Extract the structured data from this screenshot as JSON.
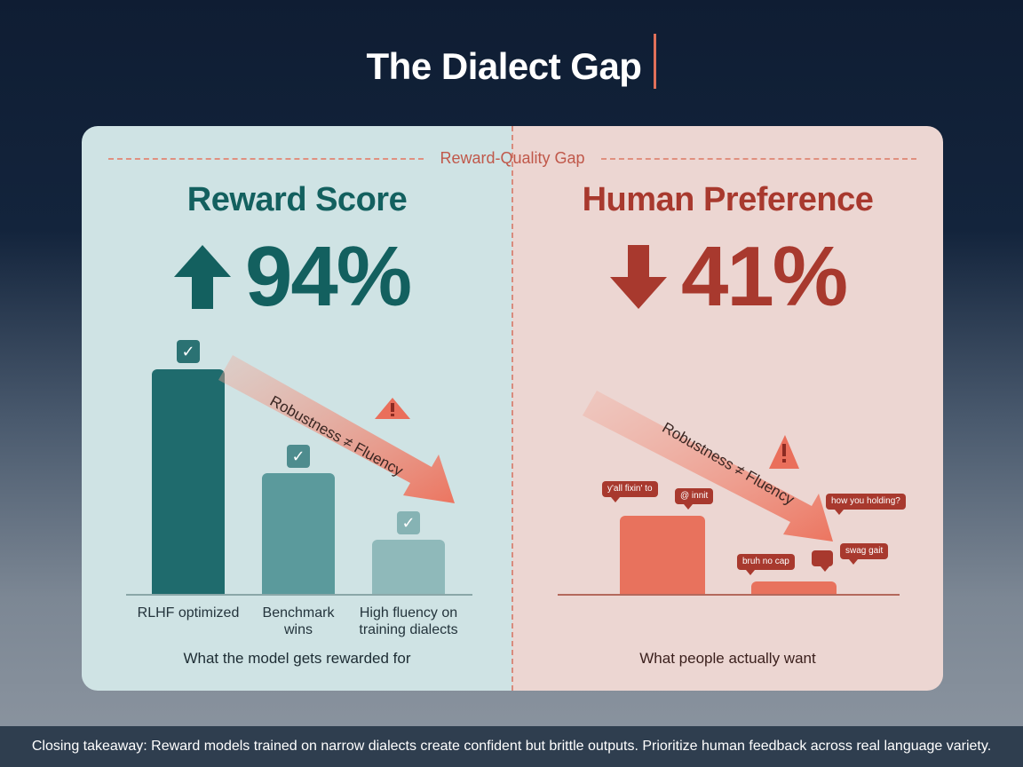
{
  "title": "The Dialect Gap",
  "gap_label": "Reward-Quality Gap",
  "left": {
    "heading": "Reward Score",
    "value": "94%",
    "direction": "up",
    "color": "#13605f",
    "bars": [
      {
        "label": "RLHF optimized",
        "relative_height": 1.0,
        "color": "#1f6b6d",
        "checked": true
      },
      {
        "label": "Benchmark wins",
        "relative_height": 0.54,
        "color": "#5b9a9c",
        "checked": true
      },
      {
        "label": "High fluency on training dialects",
        "relative_height": 0.24,
        "color": "#8fb9ba",
        "checked": true
      }
    ],
    "arrow_label": "Robustness ≠ Fluency",
    "caption": "What the model gets rewarded for"
  },
  "right": {
    "heading": "Human Preference",
    "value": "41%",
    "direction": "down",
    "color": "#a8392e",
    "bars": [
      {
        "relative_height": 0.35,
        "color": "#e8725d"
      },
      {
        "relative_height": 0.06,
        "color": "#e8725d"
      }
    ],
    "arrow_label": "Robustness ≠ Fluency",
    "bubbles": [
      "y'all fixin' to",
      "@ innit",
      "how you holding?",
      "bruh no cap",
      "",
      "swag gait"
    ],
    "caption": "What people actually want"
  },
  "footer": "Closing takeaway: Reward models trained on narrow dialects create confident but brittle outputs. Prioritize human feedback across real language variety.",
  "colors": {
    "accent": "#e0705a",
    "warning": "#e9705c"
  }
}
